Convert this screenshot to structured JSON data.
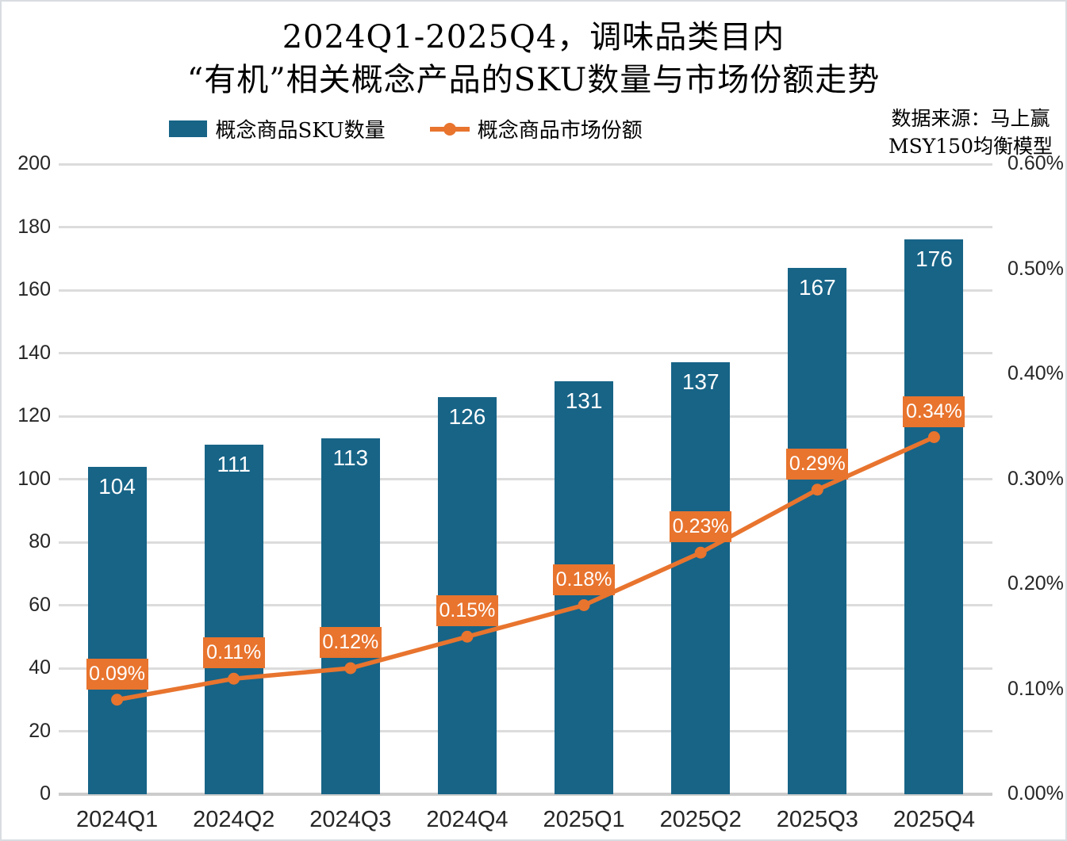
{
  "title": {
    "line1": "2024Q1-2025Q4，调味品类目内",
    "line2": "“有机”相关概念产品的SKU数量与市场份额走势"
  },
  "legend": {
    "bar": {
      "label": "概念商品SKU数量",
      "color": "#176487"
    },
    "line": {
      "label": "概念商品市场份额",
      "color": "#E8742E"
    }
  },
  "source": {
    "line1": "数据来源：马上赢",
    "line2": "MSY150均衡模型"
  },
  "chart_data": {
    "type": "bar",
    "subtype": "bar+line combo, dual axis",
    "title": "2024Q1-2025Q4，调味品类目内“有机”相关概念产品的SKU数量与市场份额走势",
    "categories": [
      "2024Q1",
      "2024Q2",
      "2024Q3",
      "2024Q4",
      "2025Q1",
      "2025Q2",
      "2025Q3",
      "2025Q4"
    ],
    "series": [
      {
        "name": "概念商品SKU数量",
        "type": "bar",
        "axis": "left",
        "color": "#176487",
        "values": [
          104,
          111,
          113,
          126,
          131,
          137,
          167,
          176
        ],
        "value_labels": [
          "104",
          "111",
          "113",
          "126",
          "131",
          "137",
          "167",
          "176"
        ],
        "value_label_color": "#ffffff"
      },
      {
        "name": "概念商品市场份额",
        "type": "line",
        "axis": "right",
        "color": "#E8742E",
        "values": [
          0.09,
          0.11,
          0.12,
          0.15,
          0.18,
          0.23,
          0.29,
          0.34
        ],
        "value_labels": [
          "0.09%",
          "0.11%",
          "0.12%",
          "0.15%",
          "0.18%",
          "0.23%",
          "0.29%",
          "0.34%"
        ],
        "value_label_color": "#ffffff"
      }
    ],
    "left_axis": {
      "min": 0,
      "max": 200,
      "step": 20,
      "tick_labels": [
        "0",
        "20",
        "40",
        "60",
        "80",
        "100",
        "120",
        "140",
        "160",
        "180",
        "200"
      ]
    },
    "right_axis": {
      "min": 0,
      "max": 0.6,
      "step": 0.1,
      "tick_labels": [
        "0.00%",
        "0.10%",
        "0.20%",
        "0.30%",
        "0.40%",
        "0.50%",
        "0.60%"
      ]
    },
    "grid": true,
    "gridline_color": "#dcdcdc",
    "legend_position": "top-center"
  }
}
